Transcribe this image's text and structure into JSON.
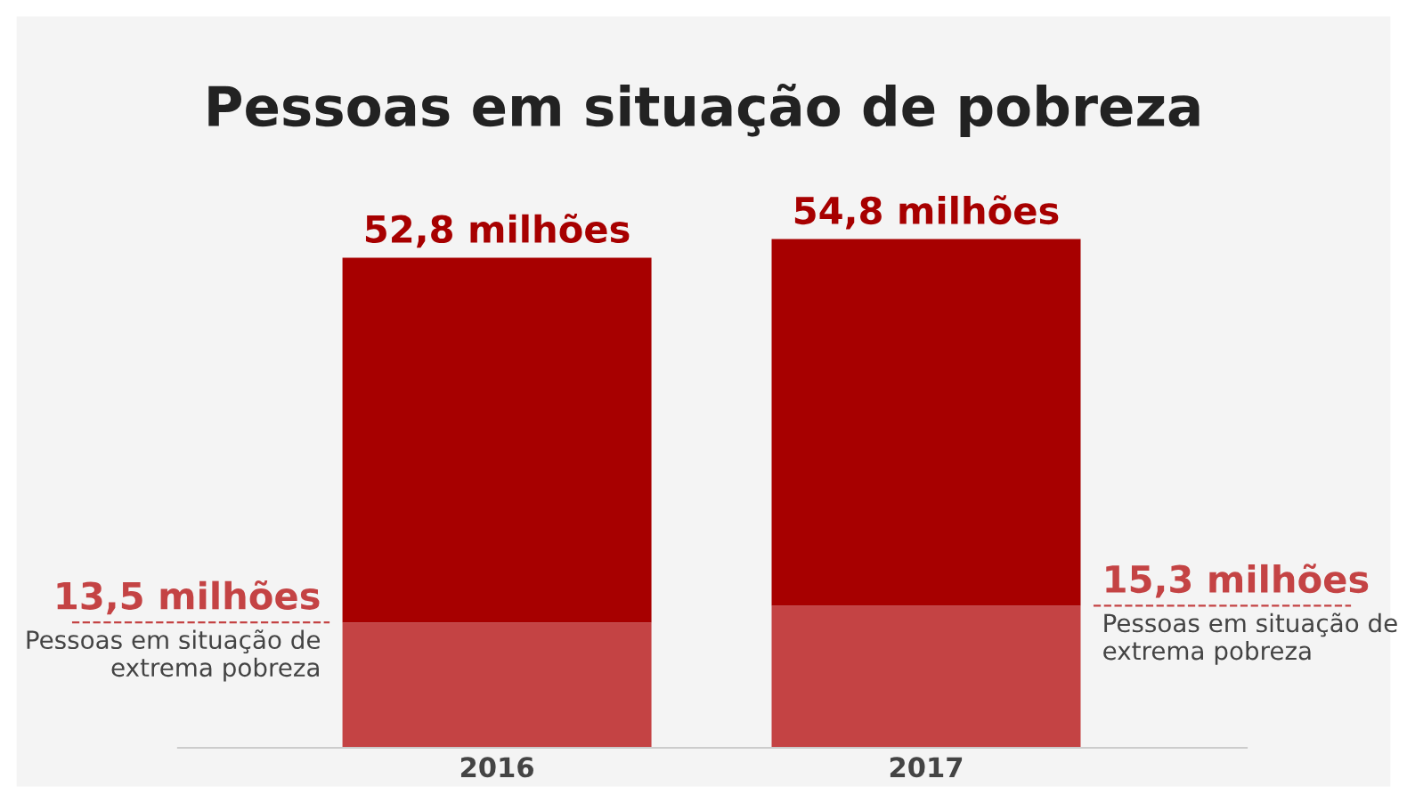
{
  "chart_data": {
    "type": "bar",
    "title": "Pessoas em situação de pobreza",
    "categories": [
      "2016",
      "2017"
    ],
    "stacked": true,
    "series": [
      {
        "color": "#c44344",
        "values": [
          13.5,
          15.3
        ],
        "value_labels": [
          "13,5 milhões",
          "15,3 milhões"
        ]
      },
      {
        "color": "#a70000",
        "values": [
          39.3,
          39.5
        ]
      }
    ],
    "totals": [
      "52,8 milhões",
      "54,8 milhões"
    ],
    "annotations": [
      "Pessoas em situação de extrema pobreza",
      "Pessoas em situação de extrema pobreza"
    ],
    "grid": false,
    "legend": false,
    "tick_labels": "x"
  }
}
